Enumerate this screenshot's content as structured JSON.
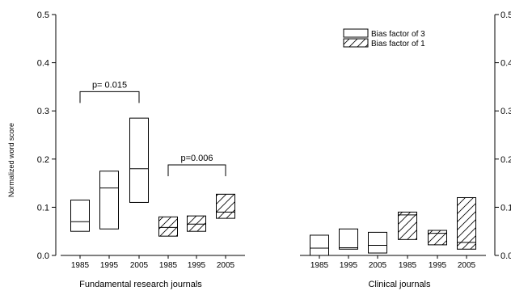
{
  "chart_data": {
    "type": "box",
    "ylabel": "Normalized word score",
    "ylim": [
      0,
      0.5
    ],
    "yticks": [
      "0.0",
      "0.1",
      "0.2",
      "0.3",
      "0.4",
      "0.5"
    ],
    "y_axis_both_sides": true,
    "legend": {
      "placement": "top-right",
      "entries": [
        {
          "label": "Bias factor of 3",
          "fill": "none"
        },
        {
          "label": "Bias factor of 1",
          "fill": "hatch"
        }
      ]
    },
    "panels": [
      {
        "title": "Fundamental research journals",
        "categories": [
          "1985",
          "1995",
          "2005",
          "1985",
          "1995",
          "2005"
        ],
        "boxes": [
          {
            "series": "Bias factor of 3",
            "year": "1985",
            "low": 0.05,
            "median": 0.07,
            "high": 0.115
          },
          {
            "series": "Bias factor of 3",
            "year": "1995",
            "low": 0.055,
            "median": 0.14,
            "high": 0.175
          },
          {
            "series": "Bias factor of 3",
            "year": "2005",
            "low": 0.11,
            "median": 0.18,
            "high": 0.285
          },
          {
            "series": "Bias factor of 1",
            "year": "1985",
            "low": 0.04,
            "median": 0.058,
            "high": 0.08
          },
          {
            "series": "Bias factor of 1",
            "year": "1995",
            "low": 0.05,
            "median": 0.065,
            "high": 0.082
          },
          {
            "series": "Bias factor of 1",
            "year": "2005",
            "low": 0.077,
            "median": 0.09,
            "high": 0.127
          }
        ],
        "annotations": [
          {
            "text": "p= 0.015",
            "from": 0,
            "to": 2,
            "y": 0.34
          },
          {
            "text": "p=0.006",
            "from": 3,
            "to": 5,
            "y": 0.188
          }
        ]
      },
      {
        "title": "Clinical journals",
        "categories": [
          "1985",
          "1995",
          "2005",
          "1985",
          "1995",
          "2005"
        ],
        "boxes": [
          {
            "series": "Bias factor of 3",
            "year": "1985",
            "low": 0.0,
            "median": 0.015,
            "high": 0.042
          },
          {
            "series": "Bias factor of 3",
            "year": "1995",
            "low": 0.013,
            "median": 0.016,
            "high": 0.055
          },
          {
            "series": "Bias factor of 3",
            "year": "2005",
            "low": 0.005,
            "median": 0.021,
            "high": 0.048
          },
          {
            "series": "Bias factor of 1",
            "year": "1985",
            "low": 0.033,
            "median": 0.084,
            "high": 0.09
          },
          {
            "series": "Bias factor of 1",
            "year": "1995",
            "low": 0.022,
            "median": 0.046,
            "high": 0.052
          },
          {
            "series": "Bias factor of 1",
            "year": "2005",
            "low": 0.013,
            "median": 0.027,
            "high": 0.12
          }
        ],
        "annotations": []
      }
    ]
  }
}
